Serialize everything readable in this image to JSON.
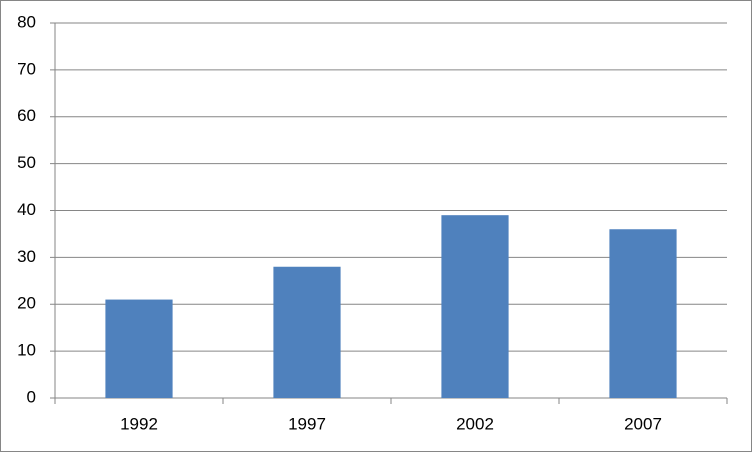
{
  "chart_data": {
    "type": "bar",
    "categories": [
      "1992",
      "1997",
      "2002",
      "2007"
    ],
    "values": [
      21,
      28,
      39,
      36
    ],
    "color": "#4f81bd",
    "ylim": [
      0,
      80
    ],
    "yticks": [
      0,
      10,
      20,
      30,
      40,
      50,
      60,
      70,
      80
    ],
    "grid": true
  }
}
